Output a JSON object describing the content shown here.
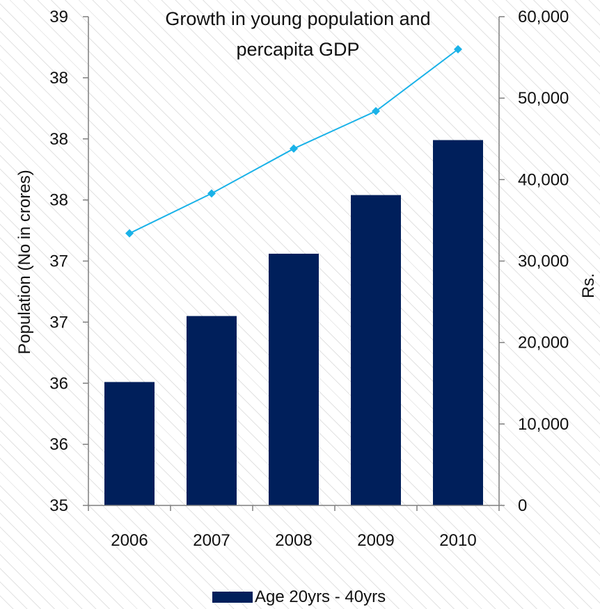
{
  "chart_data": {
    "type": "bar",
    "title_lines": [
      "Growth in young population and",
      "percapita GDP"
    ],
    "categories": [
      "2006",
      "2007",
      "2008",
      "2009",
      "2010"
    ],
    "ylabel_left": "Population (No in crores)",
    "ylabel_right": "Rs.",
    "ylim_left": [
      35,
      39
    ],
    "ylim_right": [
      0,
      60000
    ],
    "left_tick_values": [
      35,
      35.5,
      36,
      36.5,
      37,
      37.5,
      38,
      38.5,
      39
    ],
    "left_tick_labels": [
      "35",
      "36",
      "36",
      "37",
      "37",
      "38",
      "38",
      "38",
      "39"
    ],
    "right_tick_values": [
      0,
      10000,
      20000,
      30000,
      40000,
      50000,
      60000
    ],
    "right_tick_labels": [
      "0",
      "10,000",
      "20,000",
      "30,000",
      "40,000",
      "50,000",
      "60,000"
    ],
    "series": [
      {
        "name": "Age 20yrs - 40yrs",
        "type": "bar",
        "axis": "left",
        "color": "#001f5b",
        "values": [
          36.01,
          36.55,
          37.06,
          37.54,
          37.99
        ]
      },
      {
        "type": "line",
        "axis": "right",
        "color": "#1ab2e8",
        "marker": "diamond",
        "values": [
          33400,
          38300,
          43800,
          48400,
          56000
        ]
      }
    ],
    "legend_position": "bottom",
    "grid": false
  }
}
